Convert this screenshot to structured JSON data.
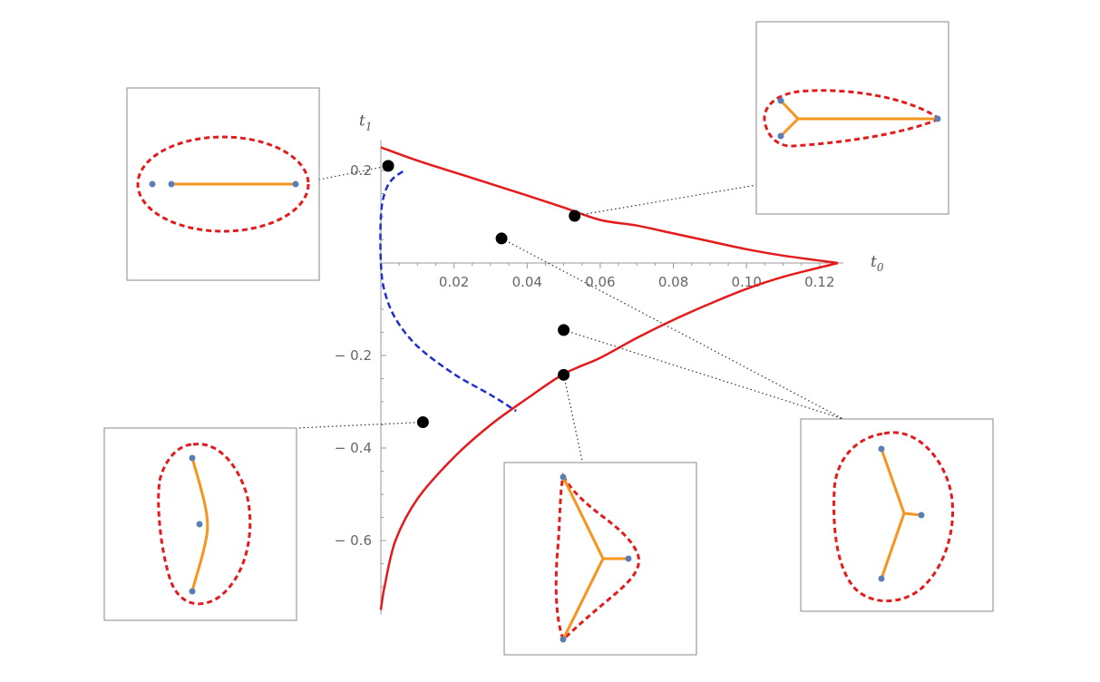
{
  "chart_data": {
    "type": "line",
    "xlabel": "t",
    "xlabel_sub": "0",
    "ylabel": "t",
    "ylabel_sub": "1",
    "xlim": [
      0,
      0.125
    ],
    "ylim": [
      -0.75,
      0.25
    ],
    "x_ticks": [
      {
        "value": 0.02,
        "label": "0.02"
      },
      {
        "value": 0.04,
        "label": "0.04"
      },
      {
        "value": 0.06,
        "label": "0.06"
      },
      {
        "value": 0.08,
        "label": "0.08"
      },
      {
        "value": 0.1,
        "label": "0.10"
      },
      {
        "value": 0.12,
        "label": "0.12"
      }
    ],
    "y_ticks": [
      {
        "value": 0.2,
        "label": "0.2"
      },
      {
        "value": -0.2,
        "label": "− 0.2"
      },
      {
        "value": -0.4,
        "label": "− 0.4"
      },
      {
        "value": -0.6,
        "label": "− 0.6"
      }
    ],
    "series": [
      {
        "style": "solid",
        "color": "#e41a1c",
        "points": [
          [
            0,
            0.25
          ],
          [
            0.01,
            0.2213
          ],
          [
            0.02,
            0.1962
          ],
          [
            0.03,
            0.1712
          ],
          [
            0.04,
            0.1459
          ],
          [
            0.05,
            0.12
          ],
          [
            0.06,
            0.0931
          ],
          [
            0.07,
            0.0809
          ],
          [
            0.08,
            0.0639
          ],
          [
            0.09,
            0.0469
          ],
          [
            0.1,
            0.0298
          ],
          [
            0.11,
            0.016
          ],
          [
            0.125,
            0
          ]
        ]
      },
      {
        "style": "solid",
        "color": "#e41a1c",
        "points": [
          [
            0.125,
            0
          ],
          [
            0.11,
            -0.03
          ],
          [
            0.1,
            -0.056
          ],
          [
            0.09,
            -0.088
          ],
          [
            0.08,
            -0.123
          ],
          [
            0.07,
            -0.162
          ],
          [
            0.06,
            -0.205
          ],
          [
            0.05,
            -0.24
          ],
          [
            0.04,
            -0.293
          ],
          [
            0.03,
            -0.35
          ],
          [
            0.02,
            -0.42
          ],
          [
            0.01,
            -0.51
          ],
          [
            0.004,
            -0.6
          ],
          [
            0.001,
            -0.7
          ],
          [
            0,
            -0.75
          ]
        ]
      },
      {
        "style": "dashed",
        "color": "#1f2fd0",
        "points": [
          [
            0.006,
            0.198
          ],
          [
            0.003,
            0.18
          ],
          [
            0.001,
            0.15
          ],
          [
            0,
            0.1
          ],
          [
            0,
            0
          ],
          [
            0.001,
            -0.06
          ],
          [
            0.004,
            -0.12
          ],
          [
            0.01,
            -0.18
          ],
          [
            0.02,
            -0.24
          ],
          [
            0.03,
            -0.285
          ],
          [
            0.037,
            -0.32
          ]
        ]
      }
    ],
    "markers": [
      [
        0.002,
        0.21
      ],
      [
        0.053,
        0.1019
      ],
      [
        0.033,
        0.0531
      ],
      [
        0.05,
        -0.1448
      ],
      [
        0.05,
        -0.2418
      ],
      [
        0.0115,
        -0.3442
      ]
    ],
    "insets": [
      {
        "name": "inset-top-left"
      },
      {
        "name": "inset-top-right"
      },
      {
        "name": "inset-bottom-left"
      },
      {
        "name": "inset-bottom-center"
      },
      {
        "name": "inset-bottom-right"
      }
    ],
    "colors": {
      "boundary": "#e41a1c",
      "tree": "#f7941d",
      "point": "#5b7fb5",
      "marker": "#000000"
    }
  }
}
